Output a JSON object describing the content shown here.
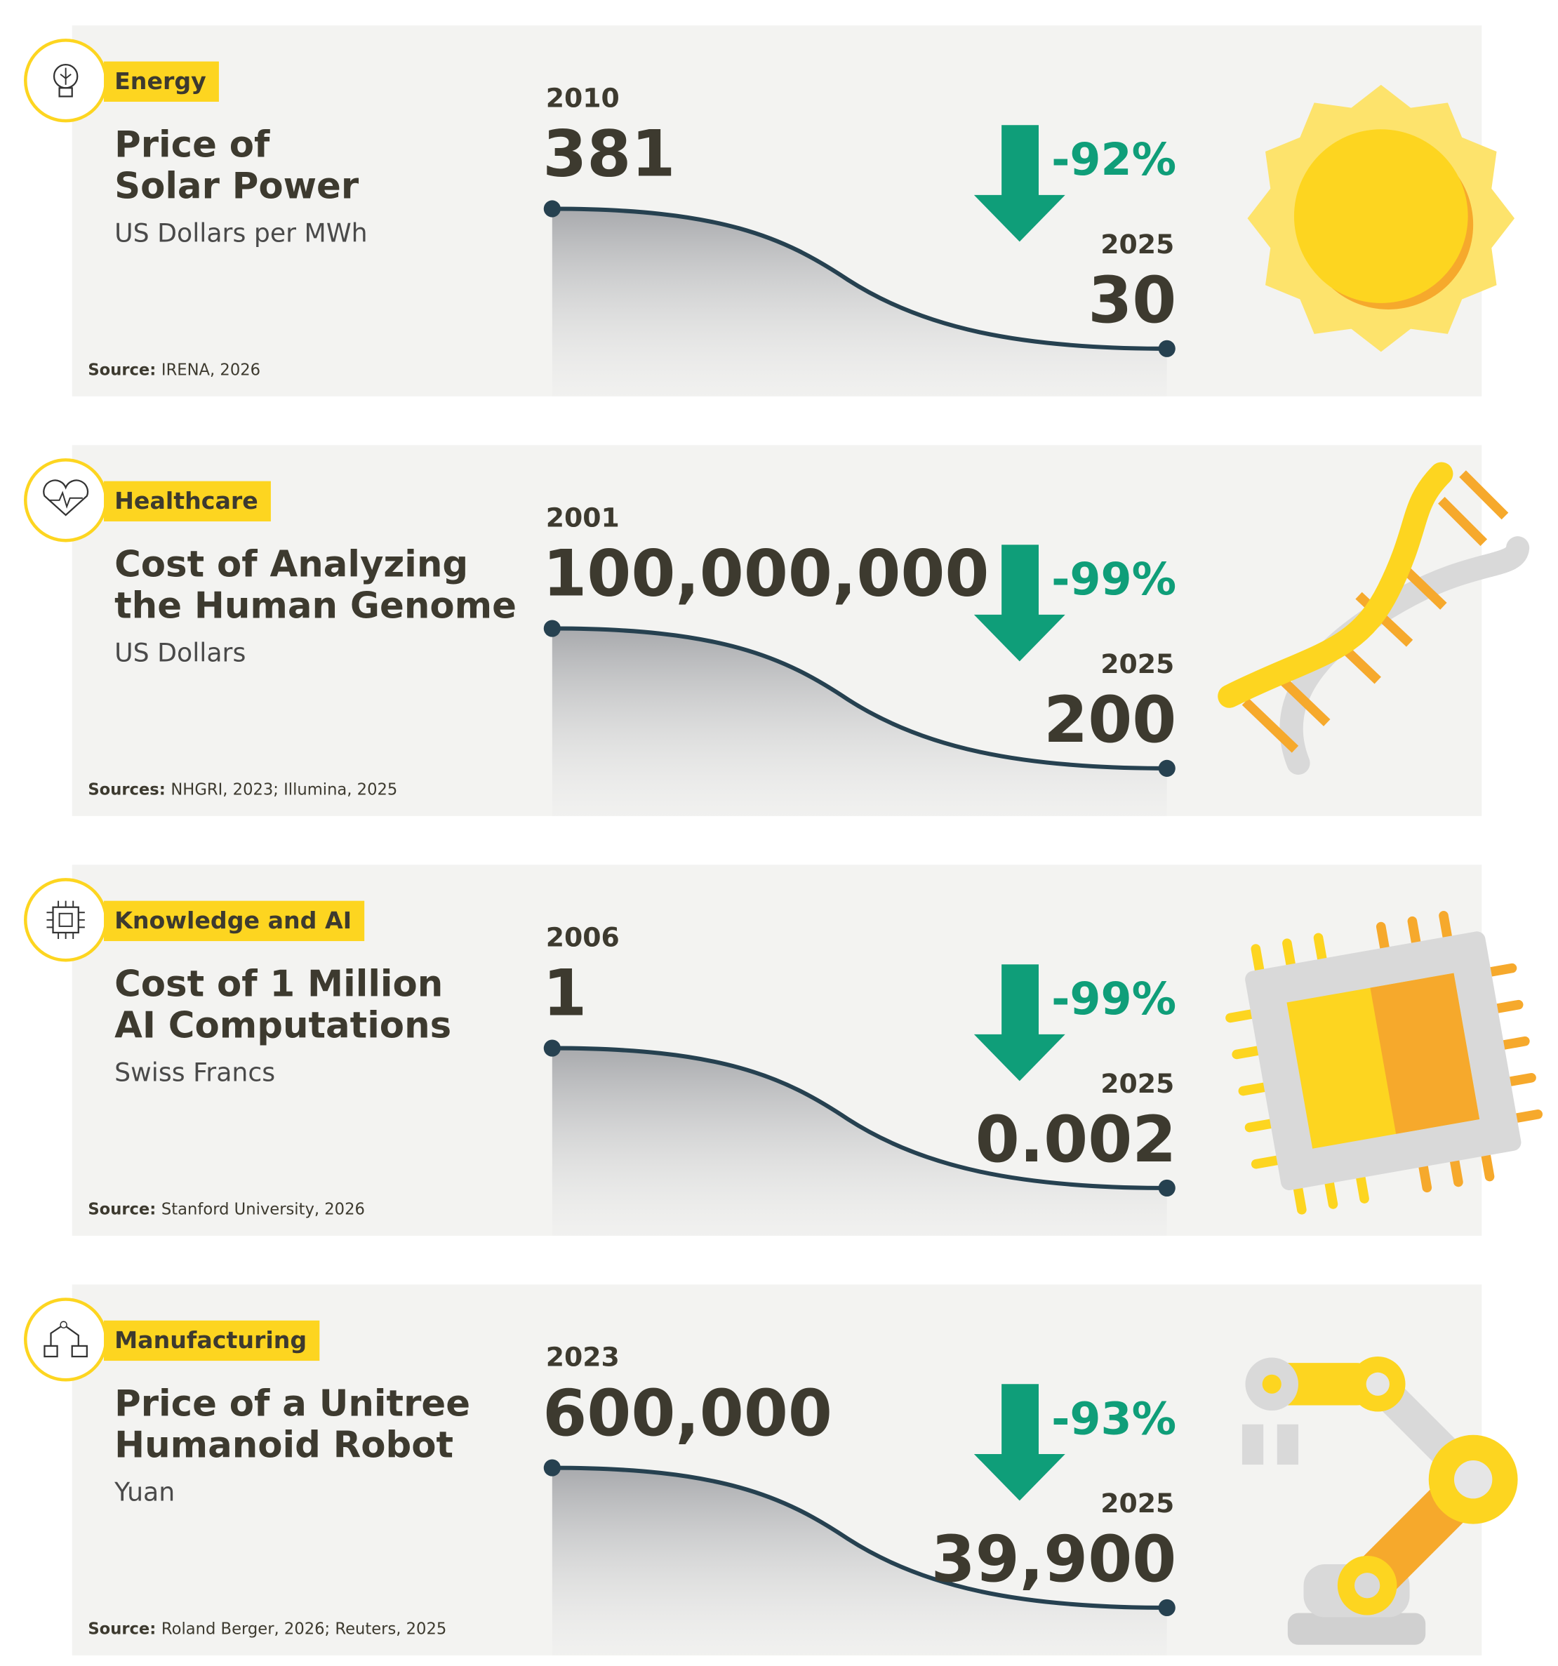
{
  "panels": [
    {
      "category": "Energy",
      "title_lines": [
        "Price of",
        "Solar Power"
      ],
      "unit": "US Dollars per MWh",
      "start_year": "2010",
      "start_value": "381",
      "end_year": "2025",
      "end_value": "30",
      "change": "-92%",
      "source_label": "Source:",
      "source": "IRENA, 2026"
    },
    {
      "category": "Healthcare",
      "title_lines": [
        "Cost of Analyzing",
        "the Human Genome"
      ],
      "unit": "US Dollars",
      "start_year": "2001",
      "start_value": "100,000,000",
      "end_year": "2025",
      "end_value": "200",
      "change": "-99%",
      "source_label": "Sources:",
      "source": "NHGRI, 2023; Illumina, 2025"
    },
    {
      "category": "Knowledge and AI",
      "title_lines": [
        "Cost of 1 Million",
        "AI Computations"
      ],
      "unit": "Swiss Francs",
      "start_year": "2006",
      "start_value": "1",
      "end_year": "2025",
      "end_value": "0.002",
      "change": "-99%",
      "source_label": "Source:",
      "source": "Stanford University, 2026"
    },
    {
      "category": "Manufacturing",
      "title_lines": [
        "Price of a Unitree",
        "Humanoid Robot"
      ],
      "unit": "Yuan",
      "start_year": "2023",
      "start_value": "600,000",
      "end_year": "2025",
      "end_value": "39,900",
      "change": "-93%",
      "source_label": "Source:",
      "source": "Roland Berger, 2026; Reuters, 2025"
    }
  ]
}
